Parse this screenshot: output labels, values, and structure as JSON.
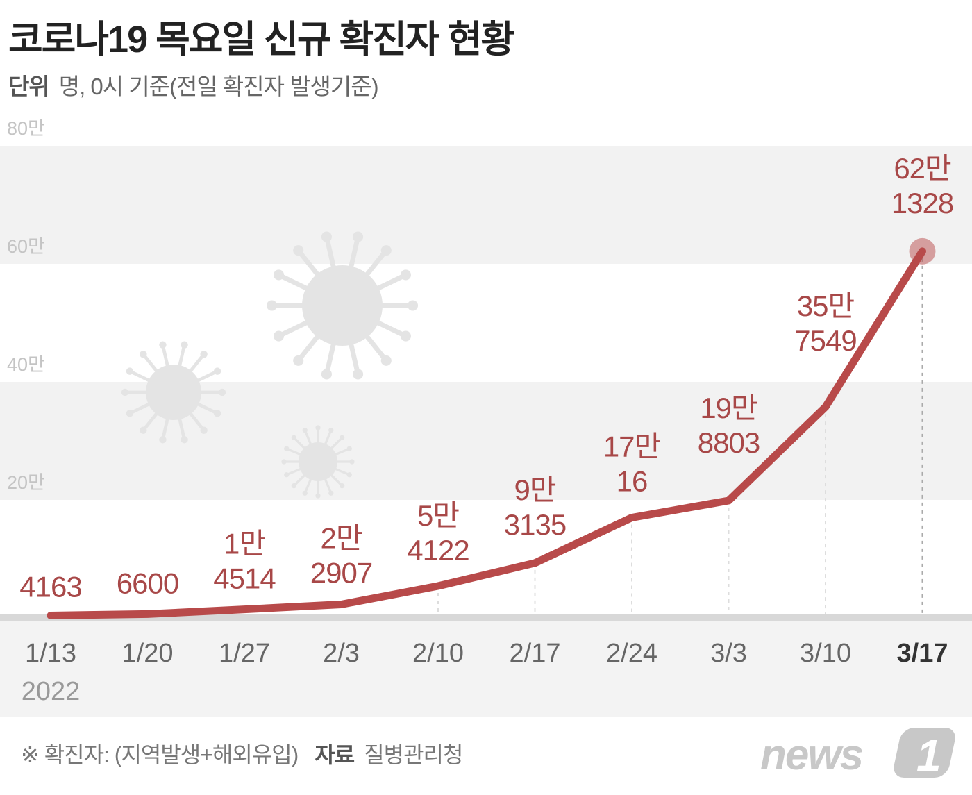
{
  "title": "코로나19 목요일 신규 확진자 현황",
  "unit_label": "단위",
  "unit_text": "명, 0시 기준(전일 확진자 발생기준)",
  "footnote": "※ 확진자: (지역발생+해외유입)",
  "source_label": "자료",
  "source": "질병관리청",
  "logo": "news1",
  "colors": {
    "line": "#b84a4a",
    "label": "#a84848",
    "band": "#f2f2f2",
    "virus": "#e4e4e4"
  },
  "chart_data": {
    "type": "line",
    "categories": [
      "1/13",
      "1/20",
      "1/27",
      "2/3",
      "2/10",
      "2/17",
      "2/24",
      "3/3",
      "3/10",
      "3/17"
    ],
    "year_label": "2022",
    "values": [
      4163,
      6600,
      14514,
      22907,
      54122,
      93135,
      170016,
      198803,
      357549,
      621328
    ],
    "data_labels": [
      [
        "",
        "4163"
      ],
      [
        "",
        "6600"
      ],
      [
        "1만",
        "4514"
      ],
      [
        "2만",
        "2907"
      ],
      [
        "5만",
        "4122"
      ],
      [
        "9만",
        "3135"
      ],
      [
        "17만",
        "16"
      ],
      [
        "19만",
        "8803"
      ],
      [
        "35만",
        "7549"
      ],
      [
        "62만",
        "1328"
      ]
    ],
    "yticks": [
      {
        "value": 200000,
        "label": "20만"
      },
      {
        "value": 400000,
        "label": "40만"
      },
      {
        "value": 600000,
        "label": "60만"
      },
      {
        "value": 800000,
        "label": "80만"
      }
    ],
    "ylim": [
      0,
      800000
    ],
    "highlight": "3/17",
    "grid": "alternating bands",
    "legend": "none"
  }
}
